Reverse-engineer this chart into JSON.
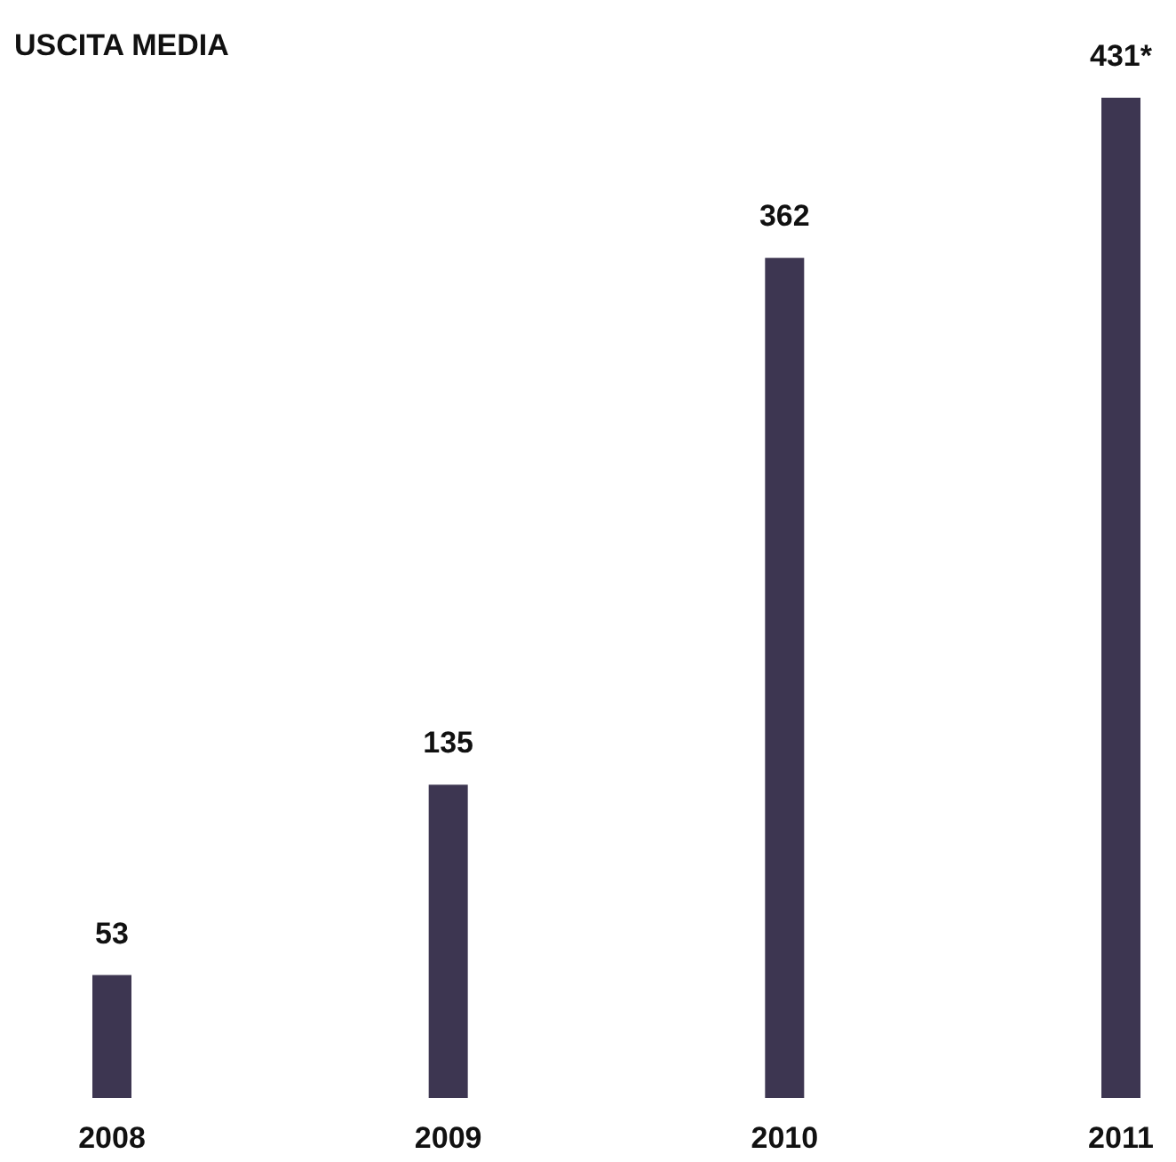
{
  "chart_data": {
    "type": "bar",
    "title": "USCITA MEDIA",
    "categories": [
      "2008",
      "2009",
      "2010",
      "2011"
    ],
    "values": [
      53,
      135,
      362,
      431
    ],
    "value_labels": [
      "53",
      "135",
      "362",
      "431*"
    ],
    "color": "#3d3651"
  }
}
